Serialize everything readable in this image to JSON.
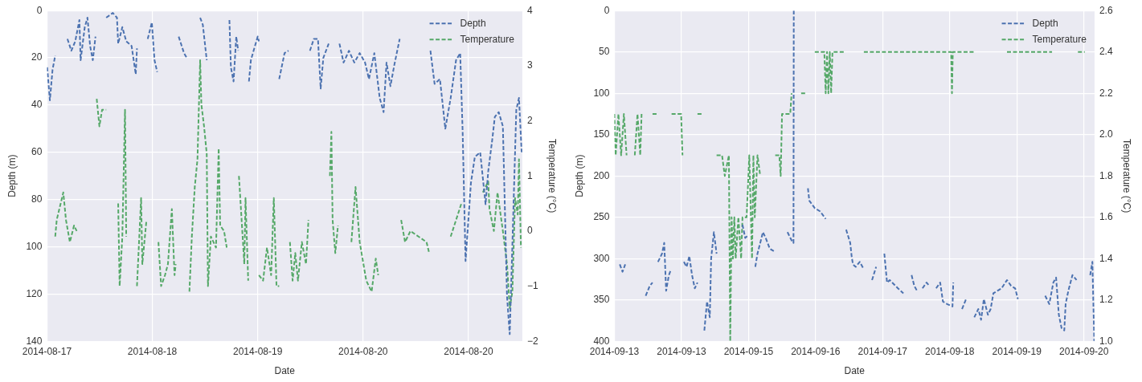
{
  "chart_data": [
    {
      "type": "line",
      "xlabel": "Date",
      "ylabel": "Depth (m)",
      "y2label": "Temperature (°C)",
      "legend": "top right",
      "line_style": "dashed",
      "grid": true,
      "xlim": [
        "2014-08-17T08:24",
        "2014-08-21T09:50"
      ],
      "xticks": [
        {
          "value": "2014-08-17T08:24",
          "label": "2014-08-17"
        },
        {
          "value": "2014-08-18T06:00",
          "label": "2014-08-18"
        },
        {
          "value": "2014-08-19T03:36",
          "label": "2014-08-19"
        },
        {
          "value": "2014-08-20T01:12",
          "label": "2014-08-20"
        },
        {
          "value": "2014-08-20T22:48",
          "label": "2014-08-20"
        }
      ],
      "ylim": [
        140,
        0
      ],
      "yticks": [
        0,
        20,
        40,
        60,
        80,
        100,
        120,
        140
      ],
      "y2lim": [
        -2,
        4
      ],
      "y2ticks": [
        {
          "value": -2,
          "label": "−2"
        },
        {
          "value": -1,
          "label": "−1"
        },
        0,
        1,
        2,
        3,
        4
      ],
      "series": [
        {
          "name": "Depth",
          "color": "#4c72b0",
          "x": [
            "2014-08-17T08:27",
            "2014-08-17T09:00",
            "2014-08-17T09:33",
            "2014-08-17T10:06",
            "2014-08-17T11:20",
            "2014-08-17T12:36",
            "2014-08-17T13:24",
            "2014-08-17T14:12",
            "2014-08-17T15:03",
            "2014-08-17T15:18",
            "2014-08-17T16:09",
            "2014-08-17T16:42",
            "2014-08-17T17:15",
            "2014-08-17T17:48",
            "2014-08-17T18:21",
            "2014-08-17T19:30",
            "2014-08-17T20:33",
            "2014-08-17T21:54",
            "2014-08-17T22:45",
            "2014-08-17T23:00",
            "2014-08-17T23:51",
            "2014-08-18T00:39",
            "2014-08-18T01:45",
            "2014-08-18T02:36",
            "2014-08-18T02:51",
            "2014-08-18T04:00",
            "2014-08-18T05:03",
            "2014-08-18T05:54",
            "2014-08-18T06:27",
            "2014-08-18T07:00",
            "2014-08-18T09:00",
            "2014-08-18T11:24",
            "2014-08-18T12:30",
            "2014-08-18T13:03",
            "2014-08-18T14:30",
            "2014-08-18T15:48",
            "2014-08-18T16:21",
            "2014-08-18T17:09",
            "2014-08-18T19:30",
            "2014-08-18T21:48",
            "2014-08-18T22:06",
            "2014-08-18T22:39",
            "2014-08-18T23:12",
            "2014-08-18T23:36",
            "2014-08-19T00:45",
            "2014-08-19T01:48",
            "2014-08-19T02:12",
            "2014-08-19T02:45",
            "2014-08-19T03:36",
            "2014-08-19T03:51",
            "2014-08-19T06:00",
            "2014-08-19T08:00",
            "2014-08-19T09:06",
            "2014-08-19T09:54",
            "2014-08-19T12:00",
            "2014-08-19T14:18",
            "2014-08-19T15:06",
            "2014-08-19T15:57",
            "2014-08-19T16:30",
            "2014-08-19T17:03",
            "2014-08-19T18:09",
            "2014-08-19T19:15",
            "2014-08-19T20:21",
            "2014-08-19T21:12",
            "2014-08-19T22:18",
            "2014-08-19T23:24",
            "2014-08-20T00:30",
            "2014-08-20T01:36",
            "2014-08-20T02:24",
            "2014-08-20T03:30",
            "2014-08-20T04:36",
            "2014-08-20T05:24",
            "2014-08-20T06:00",
            "2014-08-20T06:48",
            "2014-08-20T07:36",
            "2014-08-20T08:42",
            "2014-08-20T12:00",
            "2014-08-20T15:00",
            "2014-08-20T15:51",
            "2014-08-20T16:57",
            "2014-08-20T18:03",
            "2014-08-20T19:09",
            "2014-08-20T20:15",
            "2014-08-20T21:06",
            "2014-08-20T21:36",
            "2014-08-20T22:12",
            "2014-08-20T22:42",
            "2014-08-20T23:18",
            "2014-08-21T00:06",
            "2014-08-21T01:12",
            "2014-08-21T02:18",
            "2014-08-21T02:51",
            "2014-08-21T03:39",
            "2014-08-21T04:12",
            "2014-08-21T05:00",
            "2014-08-21T05:51",
            "2014-08-21T06:42",
            "2014-08-21T07:15",
            "2014-08-21T07:48",
            "2014-08-21T08:36",
            "2014-08-21T09:09",
            "2014-08-21T09:42"
          ],
          "values": [
            24,
            38,
            25,
            19,
            null,
            12,
            17,
            13,
            4,
            21,
            7,
            3,
            15,
            21,
            11,
            null,
            3,
            1,
            3,
            14,
            7,
            13,
            15,
            27,
            16,
            null,
            12,
            5,
            21,
            26,
            null,
            11,
            18,
            20,
            null,
            3,
            6,
            21,
            null,
            4,
            24,
            30,
            11,
            17,
            null,
            30,
            21,
            17,
            11,
            13,
            null,
            29,
            18,
            17,
            null,
            17,
            12,
            12,
            33,
            20,
            14,
            null,
            14,
            22,
            17,
            22,
            18,
            22,
            29,
            18,
            37,
            43,
            22,
            32,
            23,
            12,
            null,
            17,
            31,
            29,
            50,
            37,
            21,
            18,
            51,
            106,
            91,
            73,
            62,
            60,
            82,
            68,
            55,
            45,
            43,
            49,
            121,
            137,
            99,
            42,
            37,
            60
          ]
        },
        {
          "name": "Temperature",
          "color": "#55a868",
          "axis": "y2",
          "x": [
            "2014-08-17T10:06",
            "2014-08-17T10:24",
            "2014-08-17T11:45",
            "2014-08-17T12:18",
            "2014-08-17T13:06",
            "2014-08-17T13:57",
            "2014-08-17T14:30",
            "2014-08-17T16:30",
            "2014-08-17T18:36",
            "2014-08-17T19:09",
            "2014-08-17T19:42",
            "2014-08-17T20:33",
            "2014-08-17T21:45",
            "2014-08-17T23:00",
            "2014-08-17T23:18",
            "2014-08-17T23:51",
            "2014-08-18T00:24",
            "2014-08-18T00:39",
            "2014-08-18T01:45",
            "2014-08-18T02:51",
            "2014-08-18T03:42",
            "2014-08-18T03:57",
            "2014-08-18T04:48",
            "2014-08-18T06:00",
            "2014-08-18T07:15",
            "2014-08-18T07:48",
            "2014-08-18T08:36",
            "2014-08-18T09:12",
            "2014-08-18T10:00",
            "2014-08-18T10:33",
            "2014-08-18T10:48",
            "2014-08-18T12:15",
            "2014-08-18T13:36",
            "2014-08-18T14:06",
            "2014-08-18T14:42",
            "2014-08-18T15:15",
            "2014-08-18T15:48",
            "2014-08-18T16:03",
            "2014-08-18T16:36",
            "2014-08-18T17:09",
            "2014-08-18T17:24",
            "2014-08-18T18:00",
            "2014-08-18T19:03",
            "2014-08-18T19:36",
            "2014-08-18T19:54",
            "2014-08-18T20:42",
            "2014-08-18T21:15",
            "2014-08-18T22:30",
            "2014-08-18T23:45",
            "2014-08-19T00:18",
            "2014-08-19T00:51",
            "2014-08-19T01:06",
            "2014-08-19T01:39",
            "2014-08-19T02:45",
            "2014-08-19T03:51",
            "2014-08-19T04:42",
            "2014-08-19T05:30",
            "2014-08-19T06:21",
            "2014-08-19T06:54",
            "2014-08-19T07:27",
            "2014-08-19T08:00",
            "2014-08-19T09:00",
            "2014-08-19T10:12",
            "2014-08-19T10:45",
            "2014-08-19T11:18",
            "2014-08-19T11:51",
            "2014-08-19T12:39",
            "2014-08-19T13:30",
            "2014-08-19T14:00",
            "2014-08-19T16:00",
            "2014-08-19T18:24",
            "2014-08-19T18:42",
            "2014-08-19T18:57",
            "2014-08-19T19:30",
            "2014-08-19T20:03",
            "2014-08-19T21:30",
            "2014-08-19T22:48",
            "2014-08-19T23:39",
            "2014-08-20T00:30",
            "2014-08-20T01:51",
            "2014-08-20T02:57",
            "2014-08-20T03:48",
            "2014-08-20T04:18",
            "2014-08-20T06:30",
            "2014-08-20T09:00",
            "2014-08-20T09:48",
            "2014-08-20T10:54",
            "2014-08-20T12:33",
            "2014-08-20T14:12",
            "2014-08-20T14:45",
            "2014-08-20T17:00",
            "2014-08-20T19:09",
            "2014-08-20T20:15",
            "2014-08-20T21:21",
            "2014-08-20T23:30",
            "2014-08-21T01:45",
            "2014-08-21T02:51",
            "2014-08-21T03:06",
            "2014-08-21T04:00",
            "2014-08-21T04:45",
            "2014-08-21T05:51",
            "2014-08-21T06:42",
            "2014-08-21T07:15",
            "2014-08-21T07:48",
            "2014-08-21T08:21",
            "2014-08-21T08:54",
            "2014-08-21T09:09",
            "2014-08-21T09:33"
          ],
          "values": [
            -0.1,
            0.2,
            0.7,
            0.2,
            -0.2,
            0.1,
            0.0,
            null,
            2.4,
            1.9,
            2.2,
            2.2,
            null,
            0.5,
            -1.0,
            -0.1,
            2.2,
            -0.1,
            null,
            -1.0,
            0.6,
            -0.6,
            0.2,
            null,
            -0.2,
            -1.0,
            -0.8,
            -0.6,
            0.4,
            -0.8,
            -0.6,
            null,
            -1.1,
            -0.1,
            0.8,
            1.3,
            3.1,
            2.3,
            1.9,
            1.4,
            -1.0,
            -0.1,
            -0.3,
            1.5,
            0.1,
            0.0,
            -0.3,
            null,
            1.0,
            0.2,
            -0.6,
            0.6,
            -0.9,
            null,
            -0.8,
            -0.9,
            -0.3,
            -0.8,
            0.6,
            -1.0,
            -1.0,
            null,
            -0.2,
            -0.9,
            -0.4,
            -0.9,
            -0.2,
            -0.6,
            0.2,
            null,
            1.0,
            1.8,
            0.2,
            -0.4,
            0.1,
            null,
            -0.2,
            0.8,
            -0.2,
            -0.9,
            -1.1,
            -0.5,
            -0.8,
            null,
            0.2,
            -0.2,
            0.0,
            -0.1,
            -0.2,
            -0.4,
            null,
            -0.1,
            0.2,
            0.5,
            null,
            0.7,
            0.9,
            0.4,
            0.0,
            0.7,
            0.0,
            -0.6,
            -1.4,
            -1.1,
            0.6,
            0.3,
            1.3,
            -0.3
          ]
        }
      ]
    },
    {
      "type": "line",
      "xlabel": "Date",
      "ylabel": "Depth (m)",
      "y2label": "Temperature (°C)",
      "legend": "top right",
      "line_style": "dashed",
      "grid": true,
      "xlim": [
        "2014-09-13T00:00",
        "2014-09-20T03:48"
      ],
      "xticks": [
        {
          "value": "2014-09-13T00:00",
          "label": "2014-09-13"
        },
        {
          "value": "2014-09-14T00:00",
          "label": "2014-09-13"
        },
        {
          "value": "2014-09-15T00:00",
          "label": "2014-09-15"
        },
        {
          "value": "2014-09-16T00:00",
          "label": "2014-09-16"
        },
        {
          "value": "2014-09-17T00:00",
          "label": "2014-09-17"
        },
        {
          "value": "2014-09-18T00:00",
          "label": "2014-09-18"
        },
        {
          "value": "2014-09-19T00:00",
          "label": "2014-09-19"
        },
        {
          "value": "2014-09-20T00:00",
          "label": "2014-09-20"
        }
      ],
      "ylim": [
        400,
        0
      ],
      "yticks": [
        0,
        50,
        100,
        150,
        200,
        250,
        300,
        350,
        400
      ],
      "y2lim": [
        1.0,
        2.6
      ],
      "y2ticks": [
        {
          "value": 1.0,
          "label": "1.0"
        },
        1.2,
        1.4,
        1.6,
        1.8,
        {
          "value": 2.0,
          "label": "2.0"
        },
        2.2,
        2.4,
        2.6
      ],
      "series": [
        {
          "name": "Depth",
          "color": "#4c72b0",
          "x": [
            "2014-09-13T01:57",
            "2014-09-13T02:56",
            "2014-09-13T03:54",
            "2014-09-13T07:19",
            "2014-09-13T11:13",
            "2014-09-13T12:41",
            "2014-09-13T13:40",
            "2014-09-13T14:38",
            "2014-09-13T15:37",
            "2014-09-13T17:04",
            "2014-09-13T17:51",
            "2014-09-13T18:32",
            "2014-09-13T19:31",
            "2014-09-13T20:18",
            "2014-09-13T22:26",
            "2014-09-14T00:53",
            "2014-09-14T01:51",
            "2014-09-14T02:50",
            "2014-09-14T03:48",
            "2014-09-14T04:47",
            "2014-09-14T05:45",
            "2014-09-14T06:56",
            "2014-09-14T08:12",
            "2014-09-14T09:10",
            "2014-09-14T10:09",
            "2014-09-14T10:38",
            "2014-09-14T11:37",
            "2014-09-14T12:35",
            "2014-09-14T17:28",
            "2014-09-14T21:51",
            "2014-09-14T22:50",
            "2014-09-14T23:48",
            "2014-09-15T01:16",
            "2014-09-15T02:26",
            "2014-09-15T03:13",
            "2014-09-15T04:12",
            "2014-09-15T05:10",
            "2014-09-15T06:09",
            "2014-09-15T07:37",
            "2014-09-15T09:04",
            "2014-09-15T11:31",
            "2014-09-15T13:57",
            "2014-09-15T15:25",
            "2014-09-15T16:06",
            "2014-09-15T16:12",
            "2014-09-15T18:50",
            "2014-09-15T21:16",
            "2014-09-15T21:46",
            "2014-09-15T23:43",
            "2014-09-16T01:40",
            "2014-09-16T03:37",
            "2014-09-16T06:33",
            "2014-09-16T10:56",
            "2014-09-16T12:24",
            "2014-09-16T12:54",
            "2014-09-16T13:22",
            "2014-09-16T14:21",
            "2014-09-16T15:48",
            "2014-09-16T17:16",
            "2014-09-16T18:44",
            "2014-09-16T20:12",
            "2014-09-16T21:40",
            "2014-09-16T23:08",
            "2014-09-17T00:36",
            "2014-09-17T01:34",
            "2014-09-17T02:32",
            "2014-09-17T05:28",
            "2014-09-17T06:26",
            "2014-09-17T07:25",
            "2014-09-17T08:53",
            "2014-09-17T10:21",
            "2014-09-17T11:19",
            "2014-09-17T12:18",
            "2014-09-17T13:16",
            "2014-09-17T14:15",
            "2014-09-17T15:43",
            "2014-09-17T16:41",
            "2014-09-17T17:52",
            "2014-09-17T19:08",
            "2014-09-17T20:35",
            "2014-09-17T21:34",
            "2014-09-17T23:02",
            "2014-09-18T00:59",
            "2014-09-18T01:16",
            "2014-09-18T01:58",
            "2014-09-18T04:24",
            "2014-09-18T05:51",
            "2014-09-18T07:19",
            "2014-09-18T08:47",
            "2014-09-18T10:14",
            "2014-09-18T11:13",
            "2014-09-18T12:12",
            "2014-09-18T13:40",
            "2014-09-18T14:38",
            "2014-09-18T15:37",
            "2014-09-18T17:04",
            "2014-09-18T18:32",
            "2014-09-18T20:29",
            "2014-09-18T21:57",
            "2014-09-18T23:25",
            "2014-09-19T00:23",
            "2014-09-19T05:16",
            "2014-09-19T10:09",
            "2014-09-19T11:37",
            "2014-09-19T13:04",
            "2014-09-19T14:03",
            "2014-09-19T15:02",
            "2014-09-19T16:00",
            "2014-09-19T16:59",
            "2014-09-19T17:28",
            "2014-09-19T18:26",
            "2014-09-19T19:54",
            "2014-09-19T21:22",
            "2014-09-19T23:48",
            "2014-09-20T02:15",
            "2014-09-20T03:02",
            "2014-09-20T03:43"
          ],
          "values": [
            307,
            316,
            307,
            null,
            345,
            333,
            329,
            null,
            304,
            294,
            281,
            339,
            320,
            313,
            null,
            304,
            310,
            297,
            320,
            336,
            329,
            null,
            387,
            352,
            371,
            300,
            268,
            294,
            null,
            259,
            275,
            272,
            null,
            310,
            294,
            281,
            268,
            275,
            288,
            291,
            null,
            268,
            278,
            281,
            0,
            null,
            215,
            230,
            239,
            243,
            252,
            null,
            265,
            281,
            297,
            307,
            310,
            304,
            313,
            null,
            326,
            310,
            null,
            294,
            329,
            326,
            336,
            339,
            342,
            null,
            320,
            333,
            339,
            null,
            336,
            329,
            333,
            null,
            336,
            329,
            352,
            355,
            358,
            329,
            null,
            361,
            349,
            null,
            371,
            361,
            374,
            349,
            368,
            361,
            342,
            339,
            336,
            326,
            333,
            336,
            349,
            null,
            345,
            355,
            329,
            323,
            368,
            384,
            387,
            355,
            339,
            320,
            326,
            null,
            320,
            304,
            400
          ]
        },
        {
          "name": "Temperature",
          "color": "#55a868",
          "axis": "y2",
          "x": [
            "2014-09-13T00:00",
            "2014-09-13T00:29",
            "2014-09-13T01:28",
            "2014-09-13T02:26",
            "2014-09-13T03:25",
            "2014-09-13T04:23",
            "2014-09-13T05:51",
            "2014-09-13T07:19",
            "2014-09-13T08:17",
            "2014-09-13T09:16",
            "2014-09-13T09:45",
            "2014-09-13T11:43",
            "2014-09-13T13:40",
            "2014-09-13T15:37",
            "2014-09-13T18:03",
            "2014-09-13T20:29",
            "2014-09-13T23:54",
            "2014-09-14T00:23",
            "2014-09-14T02:50",
            "2014-09-14T05:45",
            "2014-09-14T07:42",
            "2014-09-14T09:40",
            "2014-09-14T12:35",
            "2014-09-14T14:32",
            "2014-09-14T15:31",
            "2014-09-14T16:59",
            "2014-09-14T17:28",
            "2014-09-14T17:57",
            "2014-09-14T18:26",
            "2014-09-14T18:56",
            "2014-09-14T19:25",
            "2014-09-14T20:23",
            "2014-09-14T21:22",
            "2014-09-14T21:51",
            "2014-09-14T23:19",
            "2014-09-15T00:17",
            "2014-09-15T01:16",
            "2014-09-15T01:45",
            "2014-09-15T02:15",
            "2014-09-15T03:13",
            "2014-09-15T04:12",
            "2014-09-15T07:08",
            "2014-09-15T09:34",
            "2014-09-15T11:02",
            "2014-09-15T11:31",
            "2014-09-15T12:00",
            "2014-09-15T14:56",
            "2014-09-15T15:25",
            "2014-09-15T17:05",
            "2014-09-15T18:50",
            "2014-09-15T20:18",
            "2014-09-15T21:58",
            "2014-09-15T23:43",
            "2014-09-16T03:08",
            "2014-09-16T03:37",
            "2014-09-16T04:06",
            "2014-09-16T04:35",
            "2014-09-16T05:05",
            "2014-09-16T05:34",
            "2014-09-16T06:03",
            "2014-09-16T10:26",
            "2014-09-16T13:52",
            "2014-09-16T17:16",
            "2014-09-18T00:30",
            "2014-09-18T00:48",
            "2014-09-18T01:06",
            "2014-09-18T08:47",
            "2014-09-18T14:38",
            "2014-09-18T20:29",
            "2014-09-19T12:36",
            "2014-09-19T17:28",
            "2014-09-19T21:52",
            "2014-09-20T00:18"
          ],
          "values": [
            2.1,
            1.9,
            2.1,
            1.9,
            2.1,
            1.9,
            null,
            1.9,
            2.1,
            1.9,
            2.1,
            null,
            2.1,
            2.1,
            null,
            2.1,
            2.1,
            1.9,
            null,
            2.1,
            2.1,
            null,
            1.9,
            1.9,
            1.8,
            1.9,
            1.0,
            1.6,
            1.4,
            1.6,
            1.4,
            1.6,
            1.4,
            1.6,
            1.6,
            1.9,
            1.4,
            1.9,
            1.6,
            1.9,
            1.8,
            null,
            1.9,
            1.9,
            1.8,
            2.1,
            2.1,
            2.2,
            null,
            2.2,
            2.2,
            null,
            2.4,
            2.4,
            2.2,
            2.4,
            2.2,
            2.4,
            2.2,
            2.4,
            2.4,
            null,
            2.4,
            2.4,
            2.2,
            2.4,
            2.4,
            null,
            2.4,
            2.4,
            null,
            2.4,
            2.4
          ]
        }
      ]
    }
  ]
}
